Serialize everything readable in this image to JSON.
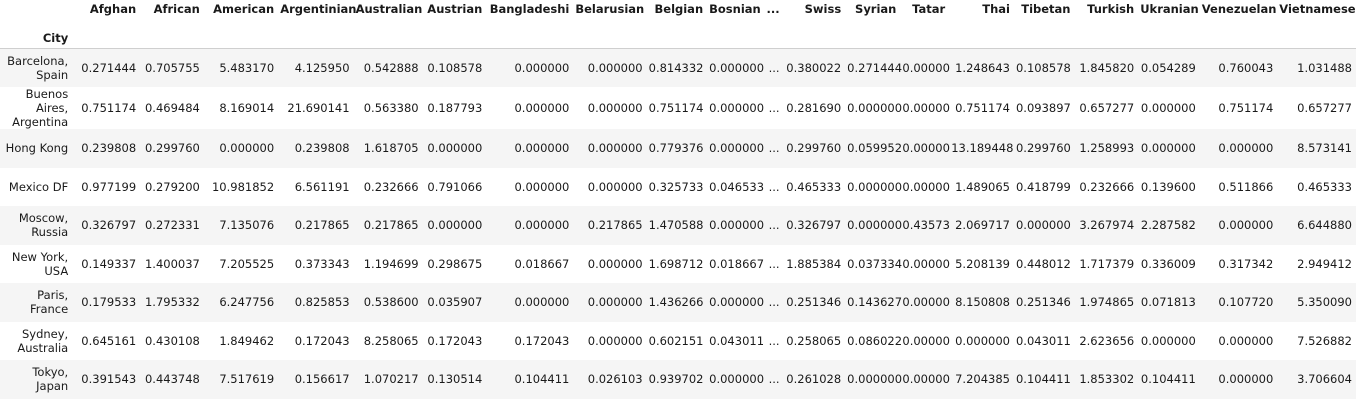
{
  "index_name": "City",
  "columns": [
    "Afghan",
    "African",
    "American",
    "Argentinian",
    "Australian",
    "Austrian",
    "Bangladeshi",
    "Belarusian",
    "Belgian",
    "Bosnian",
    "...",
    "Swiss",
    "Syrian",
    "Tatar",
    "Thai",
    "Tibetan",
    "Turkish",
    "Ukranian",
    "Venezuelan",
    "Vietnamese"
  ],
  "rows": [
    {
      "city": "Barcelona, Spain",
      "values": [
        "0.271444",
        "0.705755",
        "5.483170",
        "4.125950",
        "0.542888",
        "0.108578",
        "0.000000",
        "0.000000",
        "0.814332",
        "0.000000",
        "...",
        "0.380022",
        "0.271444",
        "0.00000",
        "1.248643",
        "0.108578",
        "1.845820",
        "0.054289",
        "0.760043",
        "1.031488"
      ]
    },
    {
      "city": "Buenos Aires, Argentina",
      "values": [
        "0.751174",
        "0.469484",
        "8.169014",
        "21.690141",
        "0.563380",
        "0.187793",
        "0.000000",
        "0.000000",
        "0.751174",
        "0.000000",
        "...",
        "0.281690",
        "0.000000",
        "0.00000",
        "0.751174",
        "0.093897",
        "0.657277",
        "0.000000",
        "0.751174",
        "0.657277"
      ]
    },
    {
      "city": "Hong Kong",
      "values": [
        "0.239808",
        "0.299760",
        "0.000000",
        "0.239808",
        "1.618705",
        "0.000000",
        "0.000000",
        "0.000000",
        "0.779376",
        "0.000000",
        "...",
        "0.299760",
        "0.059952",
        "0.00000",
        "13.189448",
        "0.299760",
        "1.258993",
        "0.000000",
        "0.000000",
        "8.573141"
      ]
    },
    {
      "city": "Mexico DF",
      "values": [
        "0.977199",
        "0.279200",
        "10.981852",
        "6.561191",
        "0.232666",
        "0.791066",
        "0.000000",
        "0.000000",
        "0.325733",
        "0.046533",
        "...",
        "0.465333",
        "0.000000",
        "0.00000",
        "1.489065",
        "0.418799",
        "0.232666",
        "0.139600",
        "0.511866",
        "0.465333"
      ]
    },
    {
      "city": "Moscow, Russia",
      "values": [
        "0.326797",
        "0.272331",
        "7.135076",
        "0.217865",
        "0.217865",
        "0.000000",
        "0.000000",
        "0.217865",
        "1.470588",
        "0.000000",
        "...",
        "0.326797",
        "0.000000",
        "0.43573",
        "2.069717",
        "0.000000",
        "3.267974",
        "2.287582",
        "0.000000",
        "6.644880"
      ]
    },
    {
      "city": "New York, USA",
      "values": [
        "0.149337",
        "1.400037",
        "7.205525",
        "0.373343",
        "1.194699",
        "0.298675",
        "0.018667",
        "0.000000",
        "1.698712",
        "0.018667",
        "...",
        "1.885384",
        "0.037334",
        "0.00000",
        "5.208139",
        "0.448012",
        "1.717379",
        "0.336009",
        "0.317342",
        "2.949412"
      ]
    },
    {
      "city": "Paris, France",
      "values": [
        "0.179533",
        "1.795332",
        "6.247756",
        "0.825853",
        "0.538600",
        "0.035907",
        "0.000000",
        "0.000000",
        "1.436266",
        "0.000000",
        "...",
        "0.251346",
        "0.143627",
        "0.00000",
        "8.150808",
        "0.251346",
        "1.974865",
        "0.071813",
        "0.107720",
        "5.350090"
      ]
    },
    {
      "city": "Sydney, Australia",
      "values": [
        "0.645161",
        "0.430108",
        "1.849462",
        "0.172043",
        "8.258065",
        "0.172043",
        "0.172043",
        "0.000000",
        "0.602151",
        "0.043011",
        "...",
        "0.258065",
        "0.086022",
        "0.00000",
        "0.000000",
        "0.043011",
        "2.623656",
        "0.000000",
        "0.000000",
        "7.526882"
      ]
    },
    {
      "city": "Tokyo, Japan",
      "values": [
        "0.391543",
        "0.443748",
        "7.517619",
        "0.156617",
        "1.070217",
        "0.130514",
        "0.104411",
        "0.026103",
        "0.939702",
        "0.000000",
        "...",
        "0.261028",
        "0.000000",
        "0.00000",
        "7.204385",
        "0.104411",
        "1.853302",
        "0.104411",
        "0.000000",
        "3.706604"
      ]
    }
  ]
}
